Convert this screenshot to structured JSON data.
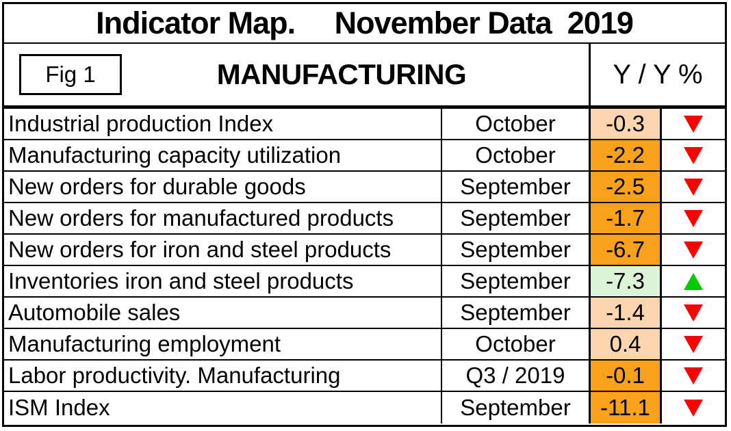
{
  "chart_data": {
    "type": "table",
    "title": "Indicator Map.     November Data  2019",
    "figure_label": "Fig 1",
    "section": "MANUFACTURING",
    "value_header": "Y / Y %",
    "rows": [
      {
        "indicator": "Industrial production Index",
        "period": "October",
        "value": "-0.3",
        "value_bg": "peach",
        "trend": "down"
      },
      {
        "indicator": "Manufacturing capacity utilization",
        "period": "October",
        "value": "-2.2",
        "value_bg": "orange",
        "trend": "down"
      },
      {
        "indicator": "New orders for durable goods",
        "period": "September",
        "value": "-2.5",
        "value_bg": "orange",
        "trend": "down"
      },
      {
        "indicator": "New orders for manufactured products",
        "period": "September",
        "value": "-1.7",
        "value_bg": "orange",
        "trend": "down"
      },
      {
        "indicator": "New orders for iron and steel products",
        "period": "September",
        "value": "-6.7",
        "value_bg": "orange",
        "trend": "down"
      },
      {
        "indicator": "Inventories iron and steel products",
        "period": "September",
        "value": "-7.3",
        "value_bg": "green",
        "trend": "up"
      },
      {
        "indicator": "Automobile sales",
        "period": "September",
        "value": "-1.4",
        "value_bg": "peach",
        "trend": "down"
      },
      {
        "indicator": "Manufacturing employment",
        "period": "October",
        "value": "0.4",
        "value_bg": "peach",
        "trend": "down"
      },
      {
        "indicator": "Labor productivity. Manufacturing",
        "period": "Q3 / 2019",
        "value": "-0.1",
        "value_bg": "orange",
        "trend": "down"
      },
      {
        "indicator": "ISM Index",
        "period": "September",
        "value": "-11.1",
        "value_bg": "orange",
        "trend": "down"
      }
    ]
  },
  "colors": {
    "cell_orange": "#F9A11B",
    "cell_peach": "#FBD5AE",
    "cell_green": "#DDF3D5",
    "arrow_red": "#FF0000",
    "arrow_green": "#00CC00",
    "border": "#000000"
  }
}
